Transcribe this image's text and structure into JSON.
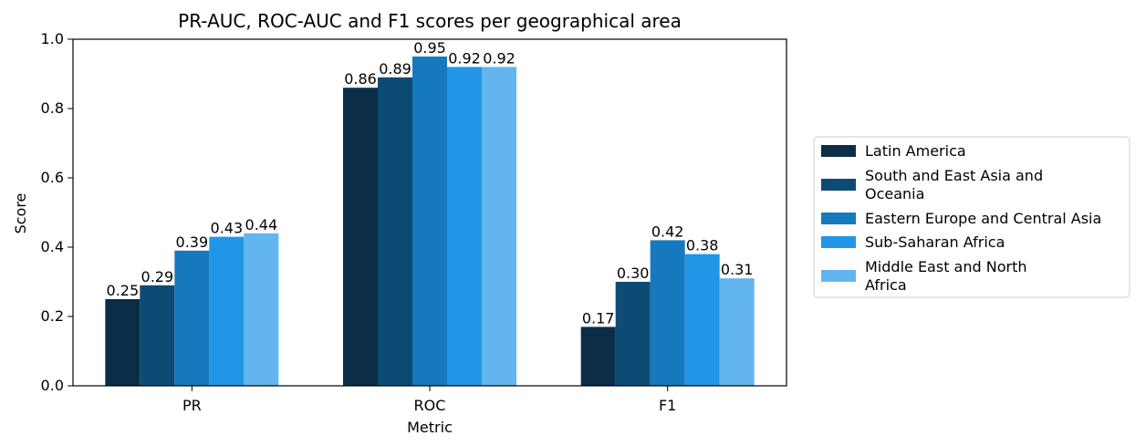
{
  "chart_data": {
    "type": "bar",
    "title": "PR-AUC, ROC-AUC and F1 scores per geographical area",
    "xlabel": "Metric",
    "ylabel": "Score",
    "ylim": [
      0,
      1.0
    ],
    "yticks": [
      "0.0",
      "0.2",
      "0.4",
      "0.6",
      "0.8",
      "1.0"
    ],
    "categories": [
      "PR",
      "ROC",
      "F1"
    ],
    "grid": false,
    "legend_position": "right-outside",
    "series": [
      {
        "name": "Latin America",
        "color": "#0b2d48",
        "values": [
          0.25,
          0.86,
          0.17
        ],
        "labels": [
          "0.25",
          "0.86",
          "0.17"
        ]
      },
      {
        "name": "South and East Asia and Oceania",
        "legend_lines": [
          "South and East Asia and",
          "Oceania"
        ],
        "color": "#0e4b74",
        "values": [
          0.29,
          0.89,
          0.3
        ],
        "labels": [
          "0.29",
          "0.89",
          "0.30"
        ]
      },
      {
        "name": "Eastern Europe and Central Asia",
        "legend_lines": [
          "Eastern Europe and Central Asia"
        ],
        "color": "#1779bd",
        "values": [
          0.39,
          0.95,
          0.42
        ],
        "labels": [
          "0.39",
          "0.95",
          "0.42"
        ]
      },
      {
        "name": "Sub-Saharan Africa",
        "legend_lines": [
          "Sub-Saharan Africa"
        ],
        "color": "#2196e6",
        "values": [
          0.43,
          0.92,
          0.38
        ],
        "labels": [
          "0.43",
          "0.92",
          "0.38"
        ]
      },
      {
        "name": "Middle East and North Africa",
        "legend_lines": [
          "Middle East and North",
          "Africa"
        ],
        "color": "#63b5ef",
        "values": [
          0.44,
          0.92,
          0.31
        ],
        "labels": [
          "0.44",
          "0.92",
          "0.31"
        ]
      }
    ]
  }
}
